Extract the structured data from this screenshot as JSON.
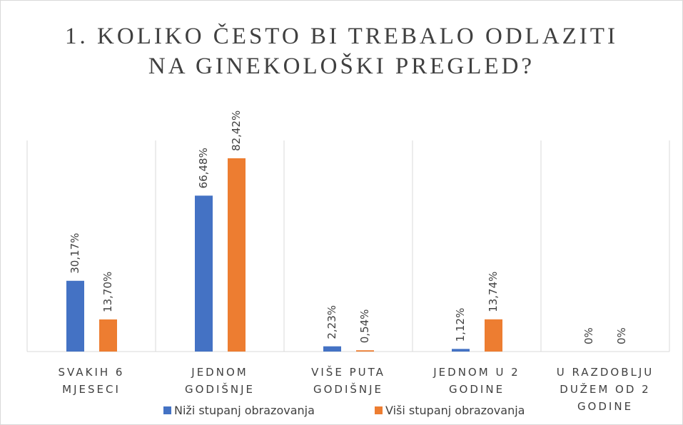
{
  "chart_data": {
    "type": "bar",
    "title": "1. KOLIKO ČESTO BI TREBALO ODLAZITI NA GINEKOLOŠKI PREGLED?",
    "categories": [
      "SVAKIH 6 MJESECI",
      "JEDNOM GODIŠNJE",
      "VIŠE PUTA GODIŠNJE",
      "JEDNOM U 2 GODINE",
      "U RAZDOBLJU DUŽEM OD 2 GODINE"
    ],
    "series": [
      {
        "name": "Niži stupanj obrazovanja",
        "color": "#4472c4",
        "values": [
          30.17,
          66.48,
          2.23,
          1.12,
          0
        ],
        "value_labels": [
          "30,17%",
          "66,48%",
          "2,23%",
          "1,12%",
          "0%"
        ]
      },
      {
        "name": "Viši stupanj obrazovanja",
        "color": "#ed7d31",
        "values": [
          13.7,
          82.42,
          0.54,
          13.74,
          0
        ],
        "value_labels": [
          "13,70%",
          "82,42%",
          "0,54%",
          "13,74%",
          "0%"
        ]
      }
    ],
    "ylim": [
      0,
      90
    ],
    "legend": "bottom"
  }
}
